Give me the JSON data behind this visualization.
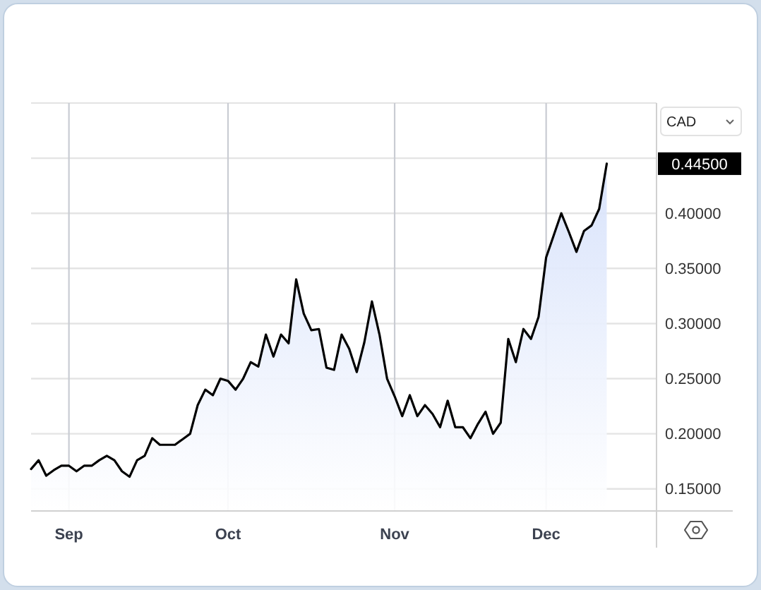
{
  "chart_data": {
    "type": "area",
    "ylabel": "CAD",
    "categories": [
      null,
      null,
      null,
      null,
      null,
      "Sep",
      null,
      null,
      null,
      null,
      null,
      null,
      null,
      null,
      null,
      null,
      null,
      null,
      null,
      null,
      null,
      null,
      null,
      null,
      null,
      null,
      "Oct",
      null,
      null,
      null,
      null,
      null,
      null,
      null,
      null,
      null,
      null,
      null,
      null,
      null,
      null,
      null,
      null,
      null,
      null,
      null,
      null,
      null,
      "Nov",
      null,
      null,
      null,
      null,
      null,
      null,
      null,
      null,
      null,
      null,
      null,
      null,
      null,
      null,
      null,
      null,
      null,
      null,
      null,
      "Dec",
      null,
      null,
      null,
      null,
      null,
      null,
      null,
      null
    ],
    "series": [
      {
        "color": "#000000",
        "values": [
          0.168,
          0.176,
          0.162,
          0.167,
          0.171,
          0.171,
          0.166,
          0.171,
          0.171,
          0.176,
          0.18,
          0.176,
          0.166,
          0.161,
          0.176,
          0.18,
          0.196,
          0.19,
          0.19,
          0.19,
          0.195,
          0.2,
          0.226,
          0.24,
          0.235,
          0.25,
          0.248,
          0.24,
          0.25,
          0.265,
          0.261,
          0.29,
          0.27,
          0.29,
          0.282,
          0.34,
          0.309,
          0.294,
          0.295,
          0.26,
          0.258,
          0.29,
          0.277,
          0.256,
          0.283,
          0.32,
          0.29,
          0.25,
          0.234,
          0.216,
          0.235,
          0.216,
          0.226,
          0.218,
          0.206,
          0.23,
          0.206,
          0.206,
          0.196,
          0.209,
          0.22,
          0.2,
          0.21,
          0.286,
          0.265,
          0.295,
          0.286,
          0.306,
          0.36,
          0.38,
          0.4,
          0.383,
          0.365,
          0.384,
          0.389,
          0.404,
          0.445
        ]
      }
    ],
    "ylim": [
      0.13,
      0.5
    ],
    "yticks": [
      {
        "value": 0.15,
        "label": "0.15000"
      },
      {
        "value": 0.2,
        "label": "0.20000"
      },
      {
        "value": 0.25,
        "label": "0.25000"
      },
      {
        "value": 0.3,
        "label": "0.30000"
      },
      {
        "value": 0.35,
        "label": "0.35000"
      },
      {
        "value": 0.4,
        "label": "0.40000"
      },
      {
        "value": 0.45,
        "label": null
      }
    ],
    "grid": true,
    "annotations": [
      "0.44500"
    ]
  }
}
